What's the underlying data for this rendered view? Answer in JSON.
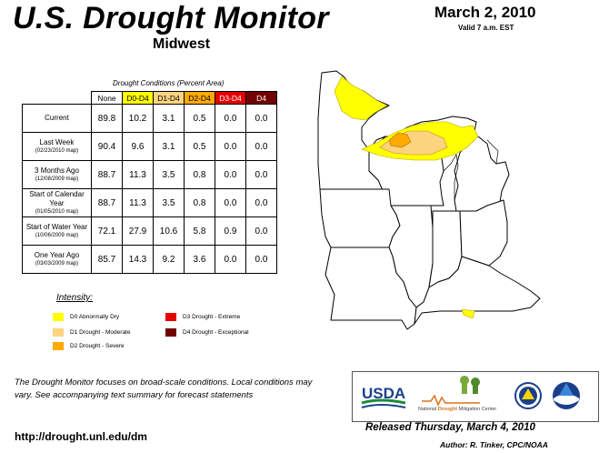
{
  "title": "U.S. Drought Monitor",
  "region": "Midwest",
  "date": "March 2, 2010",
  "valid_time": "Valid 7 a.m. EST",
  "table": {
    "caption": "Drought Conditions (Percent Area)",
    "headers": [
      "None",
      "D0-D4",
      "D1-D4",
      "D2-D4",
      "D3-D4",
      "D4"
    ],
    "header_colors": [
      "#ffffff",
      "#ffff00",
      "#fcd37f",
      "#ffaa00",
      "#e60000",
      "#730000"
    ],
    "header_text_colors": [
      "#000000",
      "#000000",
      "#000000",
      "#000000",
      "#ffffff",
      "#ffffff"
    ],
    "rows": [
      {
        "label": "Current",
        "sub": "",
        "values": [
          "89.8",
          "10.2",
          "3.1",
          "0.5",
          "0.0",
          "0.0"
        ]
      },
      {
        "label": "Last Week",
        "sub": "(02/23/2010 map)",
        "values": [
          "90.4",
          "9.6",
          "3.1",
          "0.5",
          "0.0",
          "0.0"
        ]
      },
      {
        "label": "3 Months Ago",
        "sub": "(12/08/2009 map)",
        "values": [
          "88.7",
          "11.3",
          "3.5",
          "0.8",
          "0.0",
          "0.0"
        ]
      },
      {
        "label": "Start of Calendar Year",
        "sub": "(01/05/2010 map)",
        "values": [
          "88.7",
          "11.3",
          "3.5",
          "0.8",
          "0.0",
          "0.0"
        ]
      },
      {
        "label": "Start of Water Year",
        "sub": "(10/06/2009 map)",
        "values": [
          "72.1",
          "27.9",
          "10.6",
          "5.8",
          "0.9",
          "0.0"
        ]
      },
      {
        "label": "One Year Ago",
        "sub": "(03/03/2009 map)",
        "values": [
          "85.7",
          "14.3",
          "9.2",
          "3.6",
          "0.0",
          "0.0"
        ]
      }
    ]
  },
  "legend": {
    "title": "Intensity:",
    "items": [
      {
        "label": "D0 Abnormally Dry",
        "color": "#ffff00"
      },
      {
        "label": "D1 Drought - Moderate",
        "color": "#fcd37f"
      },
      {
        "label": "D2 Drought - Severe",
        "color": "#ffaa00"
      },
      {
        "label": "D3 Drought - Extreme",
        "color": "#e60000"
      },
      {
        "label": "D4 Drought - Exceptional",
        "color": "#730000"
      }
    ]
  },
  "description": "The Drought Monitor focuses on broad-scale conditions. Local conditions may vary. See accompanying text summary for forecast statements",
  "url": "http://drought.unl.edu/dm",
  "released": "Released Thursday, March 4, 2010",
  "author": "Author: R. Tinker, CPC/NOAA",
  "logos": {
    "usda": "USDA",
    "ndmc_prefix": "National ",
    "ndmc_highlight": "Drought",
    "ndmc_suffix": " Mitigation Center"
  }
}
